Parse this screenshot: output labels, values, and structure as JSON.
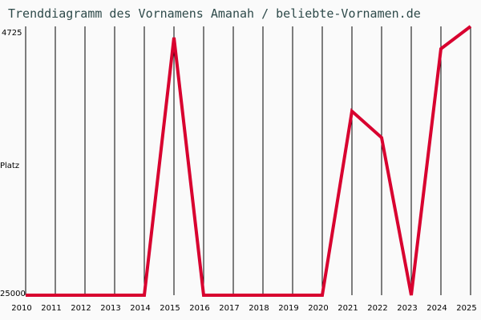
{
  "title": "Trenddiagramm des Vornamens Amanah / beliebte-Vornamen.de",
  "y_axis": {
    "top_label": "4725",
    "mid_label": "Platz",
    "bottom_label": "25000"
  },
  "colors": {
    "line": "#d8002f",
    "grid": "#000000",
    "background": "#fafafa",
    "title": "#2e4a4a"
  },
  "chart_data": {
    "type": "line",
    "title": "Trenddiagramm des Vornamens Amanah / beliebte-Vornamen.de",
    "xlabel": "",
    "ylabel": "Platz",
    "categories": [
      "2010",
      "2011",
      "2012",
      "2013",
      "2014",
      "2015",
      "2016",
      "2017",
      "2018",
      "2019",
      "2020",
      "2021",
      "2022",
      "2023",
      "2024",
      "2025"
    ],
    "series": [
      {
        "name": "Amanah",
        "values": [
          25000,
          25000,
          25000,
          25000,
          25000,
          5570,
          25000,
          25000,
          25000,
          25000,
          25000,
          11120,
          13110,
          25000,
          6415,
          4725
        ]
      }
    ],
    "ylim": [
      25000,
      4725
    ],
    "y_inverted": true,
    "grid": "vertical lines per year",
    "legend": "none"
  }
}
